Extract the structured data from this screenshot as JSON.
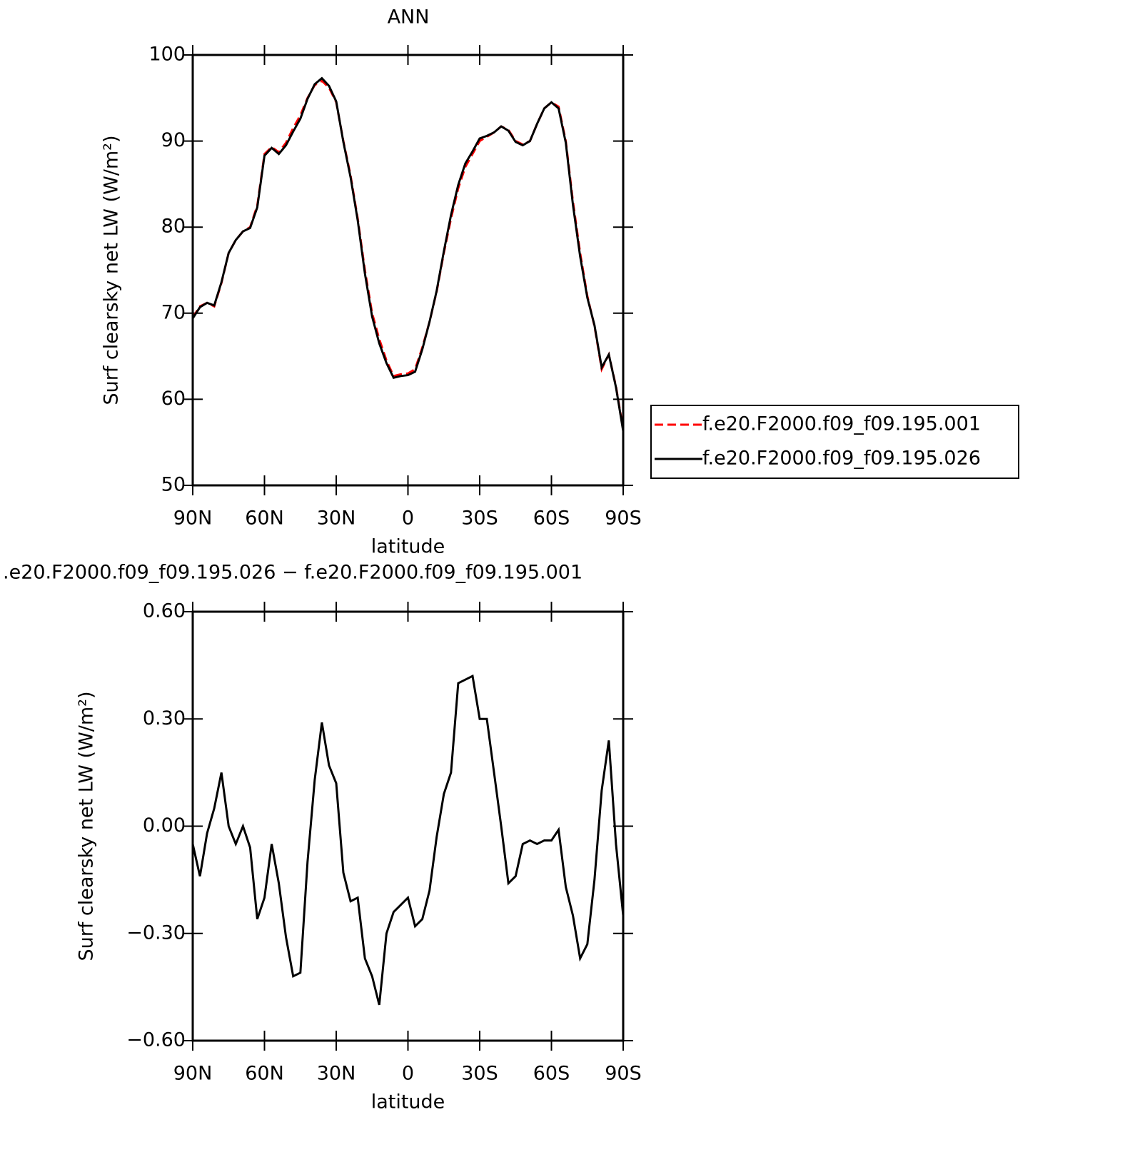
{
  "chart_data": [
    {
      "type": "line",
      "title": "ANN",
      "xlabel": "latitude",
      "ylabel": "Surf clearsky net LW (W/m²)",
      "x": [
        90,
        87,
        84,
        81,
        78,
        75,
        72,
        69,
        66,
        63,
        60,
        57,
        54,
        51,
        48,
        45,
        42,
        39,
        36,
        33,
        30,
        27,
        24,
        21,
        18,
        15,
        12,
        9,
        6,
        3,
        0,
        -3,
        -6,
        -9,
        -12,
        -15,
        -18,
        -21,
        -24,
        -27,
        -30,
        -33,
        -36,
        -39,
        -42,
        -45,
        -48,
        -51,
        -54,
        -57,
        -60,
        -63,
        -66,
        -69,
        -72,
        -75,
        -78,
        -81,
        -84,
        -87,
        -90
      ],
      "xlim": [
        90,
        -90
      ],
      "xticks": [
        {
          "value": 90,
          "label": "90N"
        },
        {
          "value": 60,
          "label": "60N"
        },
        {
          "value": 30,
          "label": "30N"
        },
        0,
        {
          "value": -30,
          "label": "30S"
        },
        {
          "value": -60,
          "label": "60S"
        },
        {
          "value": -90,
          "label": "90S"
        }
      ],
      "ylim": [
        50,
        100
      ],
      "yticks": [
        50,
        60,
        70,
        80,
        90,
        100
      ],
      "legend": "outside-right",
      "series": [
        {
          "name": "f.e20.F2000.f09_f09.195.001",
          "color": "#ff0000",
          "linestyle": "dashed",
          "values": [
            69.5,
            70.8,
            71.2,
            70.8,
            73.5,
            77,
            78.5,
            79.5,
            80,
            82.5,
            88.5,
            89.3,
            88.7,
            89.8,
            91.5,
            93,
            95,
            96.5,
            97,
            96.2,
            94.5,
            90,
            86,
            81,
            75,
            70,
            67,
            64.5,
            62.7,
            62.9,
            63,
            63.5,
            66,
            69,
            72.5,
            77,
            81,
            84.5,
            87,
            88.5,
            90,
            90.5,
            91,
            91.7,
            91.3,
            90,
            89.6,
            90,
            92,
            93.8,
            94.5,
            94,
            90,
            83,
            77,
            72,
            68.5,
            63.5,
            65.2,
            61.5,
            56.5
          ]
        },
        {
          "name": "f.e20.F2000.f09_f09.195.026",
          "color": "#000000",
          "linestyle": "solid",
          "values": [
            69.4,
            70.7,
            71.2,
            70.9,
            73.6,
            77,
            78.5,
            79.5,
            79.9,
            82.3,
            88.3,
            89.2,
            88.5,
            89.5,
            91.1,
            92.6,
            94.9,
            96.6,
            97.3,
            96.4,
            94.6,
            89.9,
            85.8,
            80.8,
            74.6,
            69.6,
            66.5,
            64.2,
            62.5,
            62.7,
            62.8,
            63.2,
            65.8,
            69,
            72.6,
            77.2,
            81.4,
            84.9,
            87.4,
            88.8,
            90.3,
            90.6,
            91,
            91.7,
            91.2,
            89.9,
            89.5,
            90,
            92,
            93.8,
            94.5,
            93.8,
            89.8,
            82.6,
            76.6,
            71.8,
            68.6,
            63.7,
            65.2,
            61.4,
            56.3
          ]
        }
      ]
    },
    {
      "type": "line",
      "title": ".e20.F2000.f09_f09.195.026 − f.e20.F2000.f09_f09.195.001",
      "xlabel": "latitude",
      "ylabel": "Surf clearsky net LW (W/m²)",
      "x": [
        90,
        87,
        84,
        81,
        78,
        75,
        72,
        69,
        66,
        63,
        60,
        57,
        54,
        51,
        48,
        45,
        42,
        39,
        36,
        33,
        30,
        27,
        24,
        21,
        18,
        15,
        12,
        9,
        6,
        3,
        0,
        -3,
        -6,
        -9,
        -12,
        -15,
        -18,
        -21,
        -24,
        -27,
        -30,
        -33,
        -36,
        -39,
        -42,
        -45,
        -48,
        -51,
        -54,
        -57,
        -60,
        -63,
        -66,
        -69,
        -72,
        -75,
        -78,
        -81,
        -84,
        -87,
        -90
      ],
      "xlim": [
        90,
        -90
      ],
      "xticks": [
        {
          "value": 90,
          "label": "90N"
        },
        {
          "value": 60,
          "label": "60N"
        },
        {
          "value": 30,
          "label": "30N"
        },
        0,
        {
          "value": -30,
          "label": "30S"
        },
        {
          "value": -60,
          "label": "60S"
        },
        {
          "value": -90,
          "label": "90S"
        }
      ],
      "ylim": [
        -0.6,
        0.6
      ],
      "yticks": [
        {
          "value": -0.6,
          "label": "−0.60"
        },
        {
          "value": -0.3,
          "label": "−0.30"
        },
        {
          "value": 0,
          "label": "0.00"
        },
        {
          "value": 0.3,
          "label": "0.30"
        },
        {
          "value": 0.6,
          "label": "0.60"
        }
      ],
      "series": [
        {
          "color": "#000000",
          "linestyle": "solid",
          "values": [
            -0.05,
            -0.14,
            -0.02,
            0.05,
            0.15,
            0.0,
            -0.05,
            0.0,
            -0.06,
            -0.26,
            -0.2,
            -0.05,
            -0.16,
            -0.31,
            -0.42,
            -0.41,
            -0.1,
            0.13,
            0.29,
            0.17,
            0.12,
            -0.13,
            -0.21,
            -0.2,
            -0.37,
            -0.42,
            -0.5,
            -0.3,
            -0.24,
            -0.22,
            -0.2,
            -0.28,
            -0.26,
            -0.18,
            -0.03,
            0.09,
            0.15,
            0.4,
            0.41,
            0.42,
            0.3,
            0.3,
            0.15,
            0.0,
            -0.16,
            -0.14,
            -0.05,
            -0.04,
            -0.05,
            -0.04,
            -0.04,
            -0.01,
            -0.17,
            -0.25,
            -0.37,
            -0.33,
            -0.15,
            0.1,
            0.24,
            -0.05,
            -0.25
          ]
        }
      ]
    }
  ]
}
